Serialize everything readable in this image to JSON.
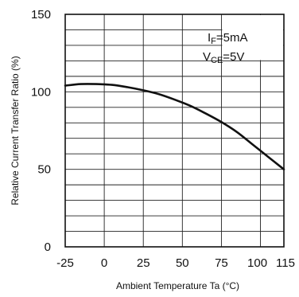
{
  "chart_data": {
    "type": "line",
    "xlabel": "Ambient Temperature Ta (°C)",
    "ylabel": "Relative Current Transfer Ratio (%)",
    "xlim": [
      -25,
      115
    ],
    "ylim": [
      0,
      150
    ],
    "x_ticks": [
      -25,
      0,
      25,
      50,
      75,
      100,
      115
    ],
    "y_ticks": [
      0,
      50,
      100,
      150
    ],
    "grid": true,
    "conditions": {
      "if": {
        "main": "I",
        "sub": "F",
        "value": "=5mA"
      },
      "vce": {
        "main": "V",
        "sub": "CE",
        "value": "=5V"
      }
    },
    "series": [
      {
        "x": [
          -25,
          -15,
          -5,
          5,
          15,
          25,
          35,
          45,
          55,
          65,
          75,
          85,
          95,
          105,
          115
        ],
        "y": [
          104,
          105,
          105,
          104.5,
          103,
          101,
          98.5,
          95,
          91,
          86,
          80.5,
          74,
          66,
          58,
          50
        ]
      }
    ]
  }
}
